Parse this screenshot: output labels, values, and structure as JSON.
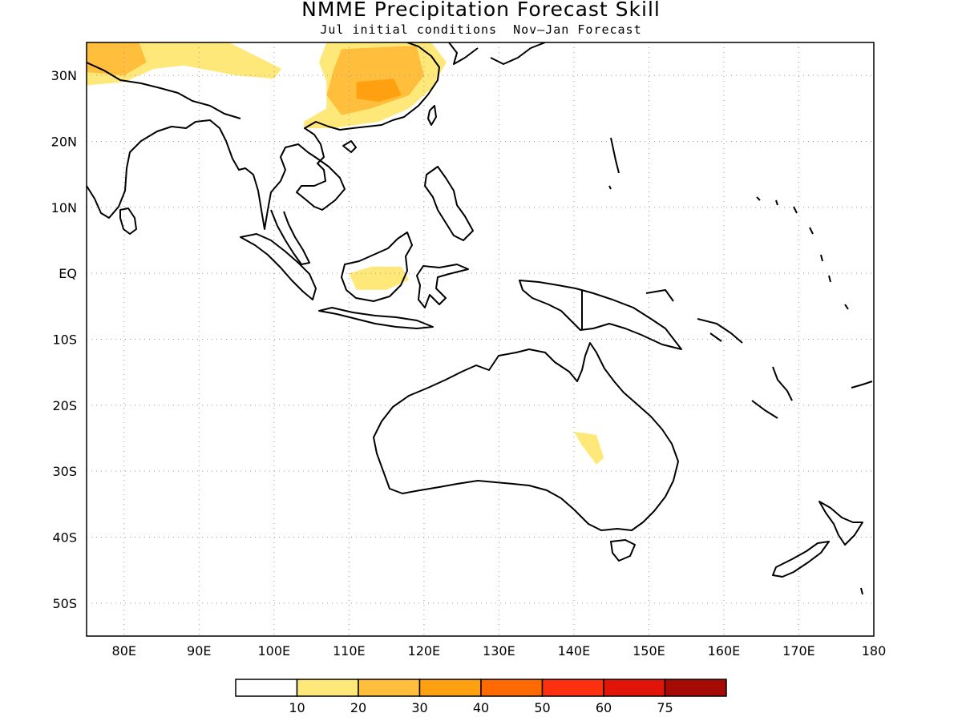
{
  "title": "NMME Precipitation Forecast Skill",
  "subtitle": "Jul initial conditions  Nov–Jan Forecast",
  "chart_data": {
    "type": "heatmap",
    "title": "NMME Precipitation Forecast Skill",
    "subtitle": "Jul initial conditions  Nov–Jan Forecast",
    "x_range": [
      75,
      180
    ],
    "y_range": [
      -55,
      35
    ],
    "x_ticks": [
      {
        "value": 80,
        "label": "80E"
      },
      {
        "value": 90,
        "label": "90E"
      },
      {
        "value": 100,
        "label": "100E"
      },
      {
        "value": 110,
        "label": "110E"
      },
      {
        "value": 120,
        "label": "120E"
      },
      {
        "value": 130,
        "label": "130E"
      },
      {
        "value": 140,
        "label": "140E"
      },
      {
        "value": 150,
        "label": "150E"
      },
      {
        "value": 160,
        "label": "160E"
      },
      {
        "value": 170,
        "label": "170E"
      },
      {
        "value": 180,
        "label": "180"
      }
    ],
    "y_ticks": [
      {
        "value": 30,
        "label": "30N"
      },
      {
        "value": 20,
        "label": "20N"
      },
      {
        "value": 10,
        "label": "10N"
      },
      {
        "value": 0,
        "label": "EQ"
      },
      {
        "value": -10,
        "label": "10S"
      },
      {
        "value": -20,
        "label": "20S"
      },
      {
        "value": -30,
        "label": "30S"
      },
      {
        "value": -40,
        "label": "40S"
      },
      {
        "value": -50,
        "label": "50S"
      }
    ],
    "grid": true,
    "legend": {
      "placement": "bottom",
      "colors": [
        "#ffffff",
        "#ffe87a",
        "#ffbf3c",
        "#ffa010",
        "#ff6a00",
        "#ff3010",
        "#e01508",
        "#a50a05"
      ],
      "labels": [
        "10",
        "20",
        "30",
        "40",
        "50",
        "60",
        "75"
      ]
    },
    "shaded_regions": [
      {
        "level": "10-20",
        "color": "#ffe87a",
        "points": [
          [
            75,
            34
          ],
          [
            80,
            35
          ],
          [
            94,
            35
          ],
          [
            101,
            31
          ],
          [
            100,
            29.5
          ],
          [
            95,
            30
          ],
          [
            88,
            31.5
          ],
          [
            84,
            31
          ],
          [
            80,
            29
          ],
          [
            75,
            28.5
          ]
        ]
      },
      {
        "level": "10-20",
        "color": "#ffe87a",
        "points": [
          [
            107,
            35
          ],
          [
            121,
            35
          ],
          [
            123,
            32
          ],
          [
            121,
            28
          ],
          [
            118,
            25
          ],
          [
            114,
            23
          ],
          [
            108,
            22
          ],
          [
            104,
            22
          ],
          [
            104,
            23
          ],
          [
            107,
            25
          ],
          [
            107,
            29
          ],
          [
            106,
            32
          ]
        ]
      },
      {
        "level": "20-30",
        "color": "#ffbf3c",
        "points": [
          [
            75,
            35
          ],
          [
            82,
            35
          ],
          [
            83,
            32
          ],
          [
            80,
            30
          ],
          [
            75,
            30.5
          ]
        ]
      },
      {
        "level": "20-30",
        "color": "#ffbf3c",
        "points": [
          [
            109,
            34
          ],
          [
            119,
            34.5
          ],
          [
            120,
            30
          ],
          [
            118,
            27
          ],
          [
            113,
            25
          ],
          [
            109,
            24
          ],
          [
            107,
            27
          ],
          [
            108,
            31
          ]
        ]
      },
      {
        "level": "30-40",
        "color": "#ffa010",
        "points": [
          [
            111,
            29
          ],
          [
            116,
            29.5
          ],
          [
            117,
            27
          ],
          [
            114,
            26
          ],
          [
            111,
            26.5
          ]
        ]
      },
      {
        "level": "10-20",
        "color": "#ffe87a",
        "points": [
          [
            110,
            0
          ],
          [
            113,
            1
          ],
          [
            117,
            1
          ],
          [
            118,
            -1
          ],
          [
            115,
            -2.5
          ],
          [
            111,
            -2.5
          ]
        ]
      },
      {
        "level": "10-20",
        "color": "#ffe87a",
        "points": [
          [
            140,
            -24
          ],
          [
            143,
            -24.5
          ],
          [
            144,
            -28
          ],
          [
            143,
            -29
          ],
          [
            141,
            -26
          ]
        ]
      }
    ]
  }
}
